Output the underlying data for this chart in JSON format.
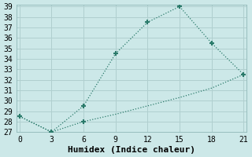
{
  "line1_x": [
    0,
    3,
    6,
    9,
    12,
    15,
    18,
    21
  ],
  "line1_y": [
    28.5,
    27.0,
    29.5,
    34.5,
    37.5,
    39.0,
    35.5,
    32.5
  ],
  "line2_x": [
    0,
    3,
    6,
    9,
    12,
    15,
    18,
    21
  ],
  "line2_y": [
    28.5,
    27.0,
    28.0,
    28.7,
    29.5,
    30.3,
    31.2,
    32.5
  ],
  "color": "#2a7a6a",
  "xlabel": "Humidex (Indice chaleur)",
  "bg_color": "#cce8e8",
  "grid_color": "#b0cfcf",
  "xlim": [
    -0.3,
    21.3
  ],
  "ylim": [
    27,
    39.2
  ],
  "xticks": [
    0,
    3,
    6,
    9,
    12,
    15,
    18,
    21
  ],
  "yticks": [
    27,
    28,
    29,
    30,
    31,
    32,
    33,
    34,
    35,
    36,
    37,
    38,
    39
  ],
  "marker": "+",
  "marker_size": 5,
  "marker_lw": 1.5,
  "line_width": 0.9,
  "font_family": "monospace",
  "xlabel_fontsize": 8,
  "tick_fontsize": 7
}
